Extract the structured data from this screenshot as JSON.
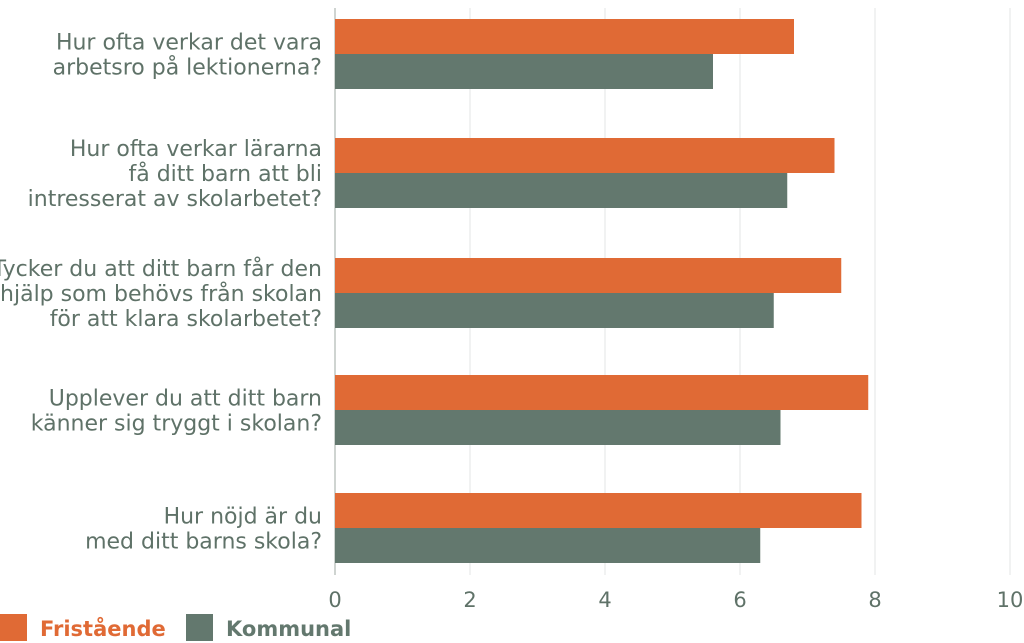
{
  "chart_data": {
    "type": "bar",
    "orientation": "horizontal",
    "categories": [
      [
        "Hur ofta verkar det vara",
        "arbetsro på lektionerna?"
      ],
      [
        "Hur ofta verkar lärarna",
        "få ditt barn att bli",
        "intresserat av skolarbetet?"
      ],
      [
        "Tycker du att ditt barn får den",
        "hjälp som behövs från skolan",
        "för att klara skolarbetet?"
      ],
      [
        "Upplever du att ditt barn",
        "känner sig tryggt i skolan?"
      ],
      [
        "Hur nöjd är du",
        "med ditt barns skola?"
      ]
    ],
    "series": [
      {
        "name": "Fristående",
        "color": "#e06a35",
        "values": [
          6.8,
          7.4,
          7.5,
          7.9,
          7.8
        ]
      },
      {
        "name": "Kommunal",
        "color": "#63786e",
        "values": [
          5.6,
          6.7,
          6.5,
          6.6,
          6.3
        ]
      }
    ],
    "xlim": [
      0,
      10
    ],
    "xticks": [
      0,
      2,
      4,
      6,
      8,
      10
    ],
    "grid": true,
    "legend_position": "bottom-left",
    "title": "",
    "xlabel": "",
    "ylabel": ""
  }
}
